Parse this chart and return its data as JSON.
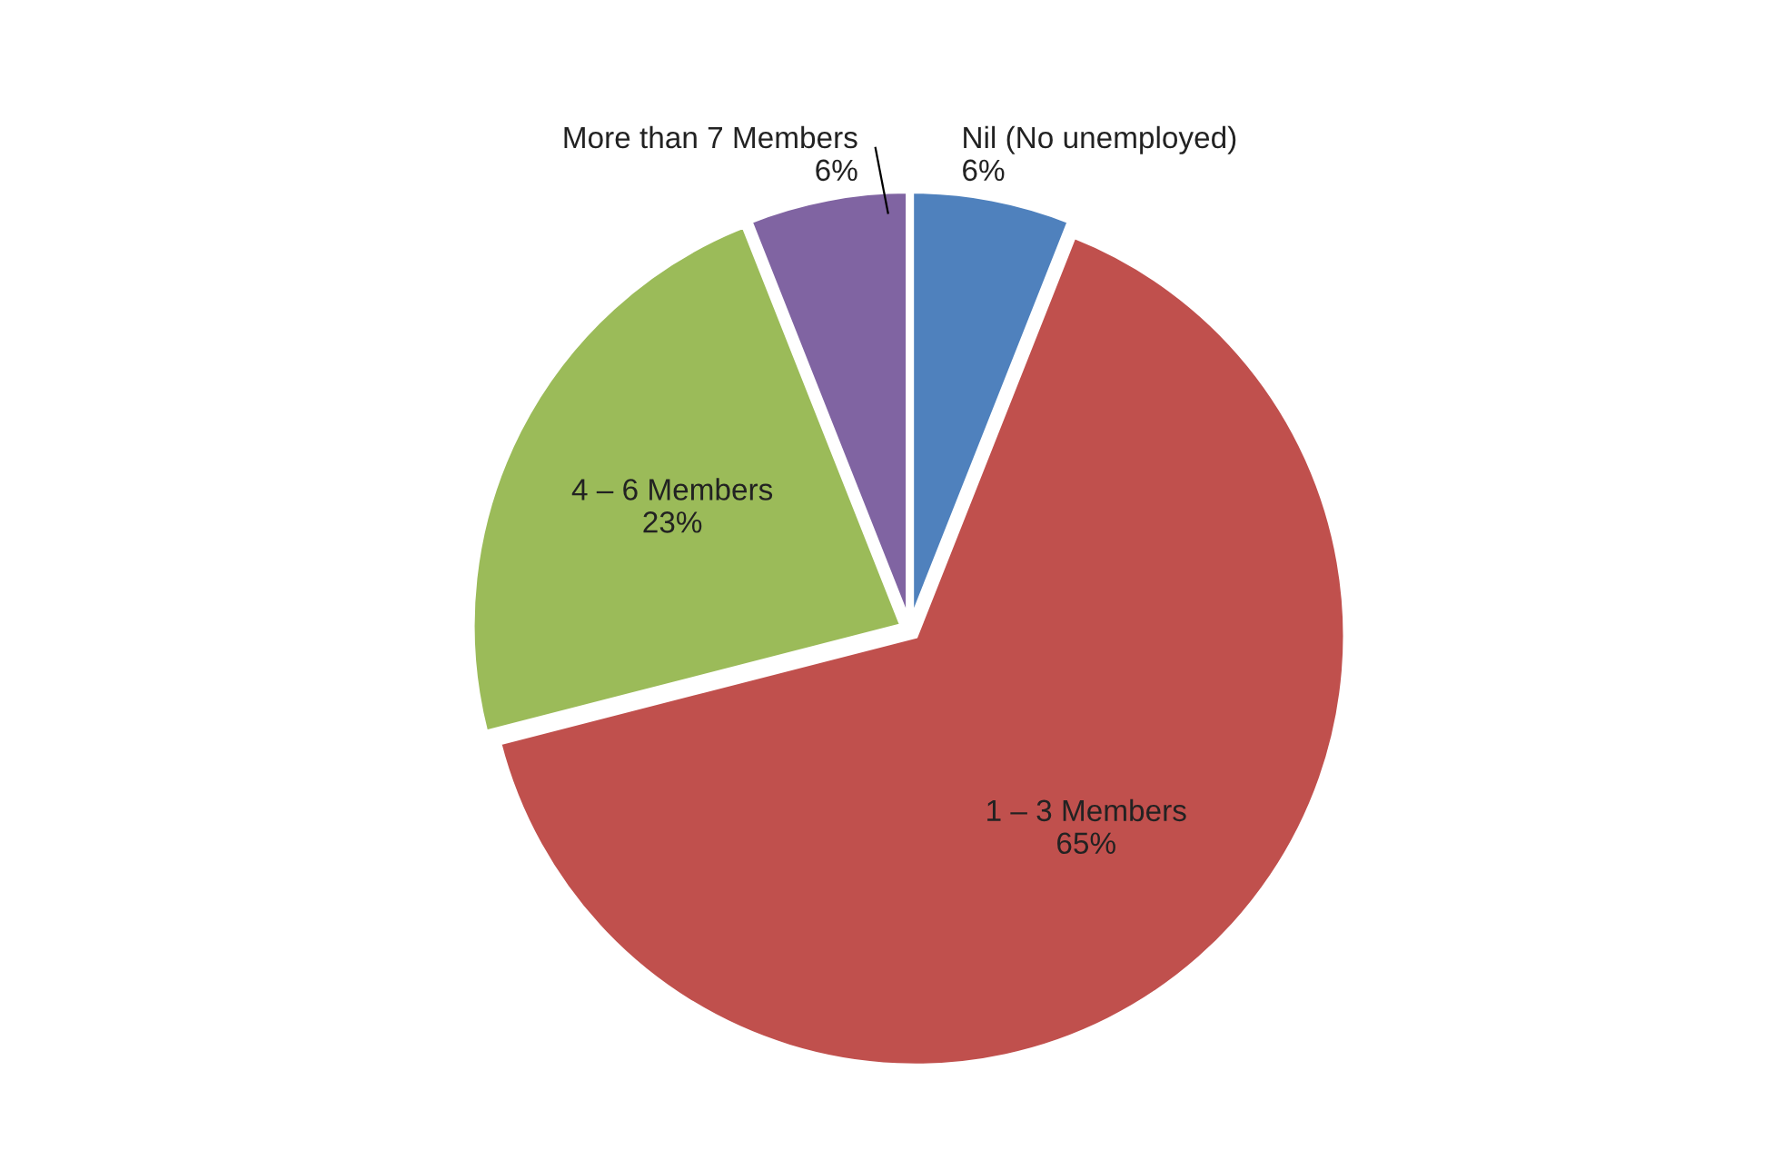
{
  "chart_data": {
    "type": "pie",
    "categories": [
      "Nil (No unemployed)",
      "1 – 3 Members",
      "4 – 6 Members",
      "More than 7 Members"
    ],
    "values": [
      6,
      65,
      23,
      6
    ],
    "value_labels": [
      "6%",
      "65%",
      "23%",
      "6%"
    ],
    "colors": [
      "#4f81bd",
      "#c0504d",
      "#9bbb59",
      "#8064a2"
    ],
    "legend": false
  }
}
